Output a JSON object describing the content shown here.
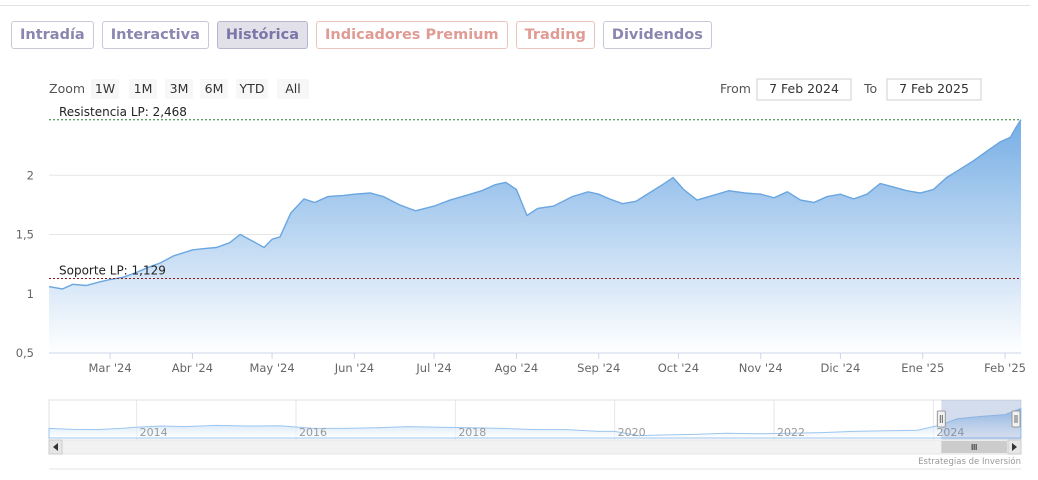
{
  "tabs": [
    {
      "label": "Intradía",
      "style": "normal"
    },
    {
      "label": "Interactiva",
      "style": "normal"
    },
    {
      "label": "Histórica",
      "style": "active"
    },
    {
      "label": "Indicadores Premium",
      "style": "premium"
    },
    {
      "label": "Trading",
      "style": "premium"
    },
    {
      "label": "Dividendos",
      "style": "normal"
    }
  ],
  "zoom": {
    "label": "Zoom",
    "buttons": [
      "1W",
      "1M",
      "3M",
      "6M",
      "YTD",
      "All"
    ]
  },
  "range": {
    "from_label": "From",
    "from_value": "7 Feb 2024",
    "to_label": "To",
    "to_value": "7 Feb 2025"
  },
  "credit": "Estrategias de Inversión",
  "colors": {
    "line": "#7db3e6",
    "fill_top": "#8ebfee",
    "fill_bottom": "#ffffff",
    "resistance": "#2e7d32",
    "support": "#8b1a1a",
    "tab_text": "#8a86b0",
    "tab_premium_text": "#e09b94"
  },
  "chart_data": {
    "type": "area",
    "xlabel": "",
    "ylabel": "",
    "ylim": [
      0.5,
      2.5
    ],
    "y_ticks": [
      "0,5",
      "1",
      "1,5",
      "2"
    ],
    "y_tick_values": [
      0.5,
      1,
      1.5,
      2
    ],
    "x_ticks": [
      "Mar '24",
      "Abr '24",
      "May '24",
      "Jun '24",
      "Jul '24",
      "Ago '24",
      "Sep '24",
      "Oct '24",
      "Nov '24",
      "Dic '24",
      "Ene '25",
      "Feb '25"
    ],
    "x_tick_dates": [
      "2024-03-01",
      "2024-04-01",
      "2024-05-01",
      "2024-06-01",
      "2024-07-01",
      "2024-08-01",
      "2024-09-01",
      "2024-10-01",
      "2024-11-01",
      "2024-12-01",
      "2025-01-01",
      "2025-02-01"
    ],
    "x_range": [
      "2024-02-07",
      "2025-02-07"
    ],
    "grid": true,
    "series": [
      {
        "values": [
          [
            "2024-02-07",
            1.06
          ],
          [
            "2024-02-12",
            1.04
          ],
          [
            "2024-02-16",
            1.08
          ],
          [
            "2024-02-21",
            1.07
          ],
          [
            "2024-02-26",
            1.1
          ],
          [
            "2024-03-01",
            1.12
          ],
          [
            "2024-03-06",
            1.14
          ],
          [
            "2024-03-11",
            1.18
          ],
          [
            "2024-03-15",
            1.22
          ],
          [
            "2024-03-20",
            1.26
          ],
          [
            "2024-03-25",
            1.32
          ],
          [
            "2024-04-01",
            1.37
          ],
          [
            "2024-04-05",
            1.38
          ],
          [
            "2024-04-10",
            1.39
          ],
          [
            "2024-04-15",
            1.43
          ],
          [
            "2024-04-19",
            1.5
          ],
          [
            "2024-04-24",
            1.44
          ],
          [
            "2024-04-28",
            1.39
          ],
          [
            "2024-05-01",
            1.46
          ],
          [
            "2024-05-04",
            1.48
          ],
          [
            "2024-05-08",
            1.68
          ],
          [
            "2024-05-13",
            1.8
          ],
          [
            "2024-05-17",
            1.77
          ],
          [
            "2024-05-22",
            1.82
          ],
          [
            "2024-05-28",
            1.83
          ],
          [
            "2024-06-01",
            1.84
          ],
          [
            "2024-06-07",
            1.85
          ],
          [
            "2024-06-12",
            1.82
          ],
          [
            "2024-06-18",
            1.75
          ],
          [
            "2024-06-24",
            1.7
          ],
          [
            "2024-07-01",
            1.74
          ],
          [
            "2024-07-07",
            1.79
          ],
          [
            "2024-07-13",
            1.83
          ],
          [
            "2024-07-19",
            1.87
          ],
          [
            "2024-07-24",
            1.92
          ],
          [
            "2024-07-28",
            1.94
          ],
          [
            "2024-08-01",
            1.88
          ],
          [
            "2024-08-05",
            1.66
          ],
          [
            "2024-08-09",
            1.72
          ],
          [
            "2024-08-15",
            1.74
          ],
          [
            "2024-08-22",
            1.82
          ],
          [
            "2024-08-28",
            1.86
          ],
          [
            "2024-09-01",
            1.84
          ],
          [
            "2024-09-05",
            1.8
          ],
          [
            "2024-09-10",
            1.76
          ],
          [
            "2024-09-15",
            1.78
          ],
          [
            "2024-09-20",
            1.85
          ],
          [
            "2024-09-25",
            1.92
          ],
          [
            "2024-09-29",
            1.98
          ],
          [
            "2024-10-03",
            1.88
          ],
          [
            "2024-10-08",
            1.79
          ],
          [
            "2024-10-14",
            1.83
          ],
          [
            "2024-10-20",
            1.87
          ],
          [
            "2024-10-26",
            1.85
          ],
          [
            "2024-11-01",
            1.84
          ],
          [
            "2024-11-06",
            1.81
          ],
          [
            "2024-11-11",
            1.86
          ],
          [
            "2024-11-16",
            1.79
          ],
          [
            "2024-11-21",
            1.77
          ],
          [
            "2024-11-26",
            1.82
          ],
          [
            "2024-12-01",
            1.84
          ],
          [
            "2024-12-06",
            1.8
          ],
          [
            "2024-12-11",
            1.84
          ],
          [
            "2024-12-16",
            1.93
          ],
          [
            "2024-12-21",
            1.9
          ],
          [
            "2024-12-26",
            1.87
          ],
          [
            "2024-12-31",
            1.85
          ],
          [
            "2025-01-05",
            1.88
          ],
          [
            "2025-01-10",
            1.98
          ],
          [
            "2025-01-15",
            2.05
          ],
          [
            "2025-01-20",
            2.12
          ],
          [
            "2025-01-25",
            2.2
          ],
          [
            "2025-01-30",
            2.28
          ],
          [
            "2025-02-03",
            2.32
          ],
          [
            "2025-02-05",
            2.4
          ],
          [
            "2025-02-07",
            2.47
          ]
        ]
      }
    ],
    "plot_lines": [
      {
        "label": "Resistencia LP: 2,468",
        "value": 2.468
      },
      {
        "label": "Soporte LP: 1,129",
        "value": 1.129
      }
    ],
    "navigator": {
      "x_ticks": [
        "2014",
        "2016",
        "2018",
        "2020",
        "2022",
        "2024"
      ],
      "x_tick_years": [
        2014,
        2016,
        2018,
        2020,
        2022,
        2024
      ],
      "x_range_years": [
        2012.9,
        2025.1
      ],
      "ylim": [
        0,
        3
      ],
      "values": [
        [
          2012.9,
          0.8
        ],
        [
          2013.2,
          0.72
        ],
        [
          2013.5,
          0.7
        ],
        [
          2013.8,
          0.8
        ],
        [
          2014.0,
          0.9
        ],
        [
          2014.3,
          1.0
        ],
        [
          2014.6,
          0.95
        ],
        [
          2015.0,
          1.05
        ],
        [
          2015.4,
          1.0
        ],
        [
          2015.8,
          1.02
        ],
        [
          2016.2,
          0.82
        ],
        [
          2016.6,
          0.8
        ],
        [
          2017.0,
          0.85
        ],
        [
          2017.4,
          0.95
        ],
        [
          2017.8,
          0.9
        ],
        [
          2018.2,
          0.85
        ],
        [
          2018.6,
          0.8
        ],
        [
          2019.0,
          0.7
        ],
        [
          2019.4,
          0.7
        ],
        [
          2019.8,
          0.55
        ],
        [
          2020.0,
          0.55
        ],
        [
          2020.3,
          0.2
        ],
        [
          2020.6,
          0.25
        ],
        [
          2021.0,
          0.3
        ],
        [
          2021.4,
          0.4
        ],
        [
          2021.8,
          0.35
        ],
        [
          2022.2,
          0.4
        ],
        [
          2022.6,
          0.45
        ],
        [
          2023.0,
          0.55
        ],
        [
          2023.4,
          0.6
        ],
        [
          2023.8,
          0.65
        ],
        [
          2024.1,
          1.1
        ],
        [
          2024.3,
          1.6
        ],
        [
          2024.6,
          1.8
        ],
        [
          2024.9,
          1.95
        ],
        [
          2025.1,
          2.47
        ]
      ],
      "selection_years": [
        2024.1,
        2025.1
      ]
    }
  }
}
